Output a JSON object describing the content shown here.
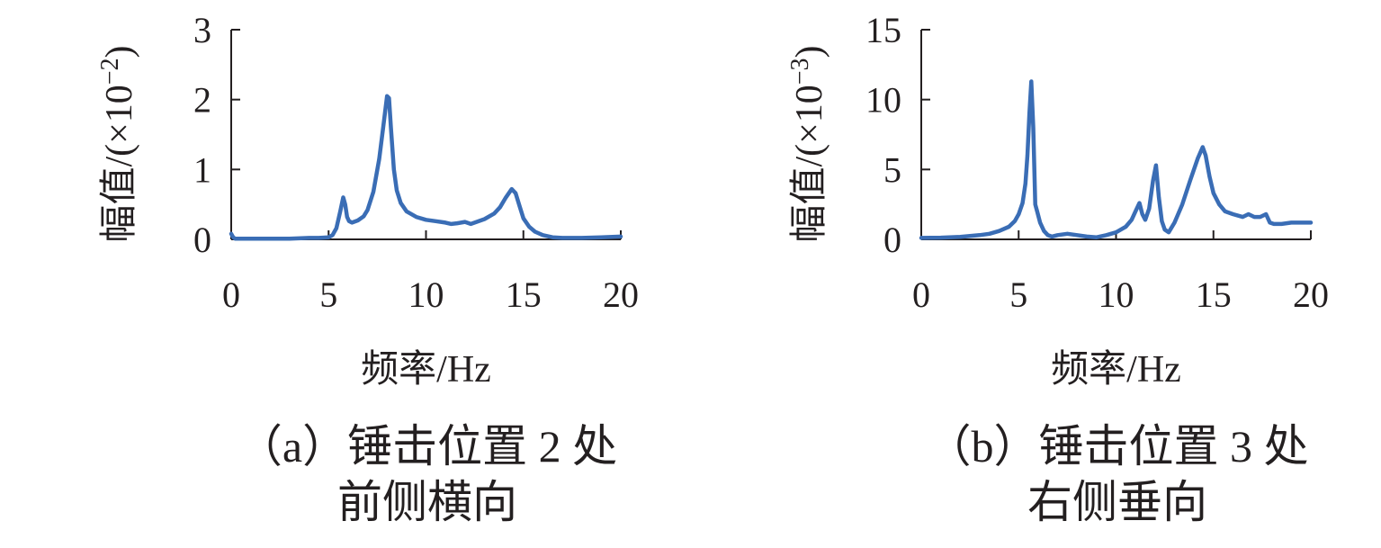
{
  "charts": [
    {
      "id": "a",
      "caption": [
        "（a）锤击位置 2 处",
        "前侧横向"
      ],
      "chart_data": {
        "type": "line",
        "xlabel": "频率/Hz",
        "ylabel": "幅值/(×10",
        "ylabel_exp": "−2",
        "ylabel_close": ")",
        "xlim": [
          0,
          20
        ],
        "ylim": [
          0,
          3
        ],
        "xticks": [
          0,
          5,
          10,
          15,
          20
        ],
        "yticks": [
          0,
          1,
          2,
          3
        ],
        "grid": false,
        "color": "#3a6db5",
        "series": [
          {
            "x": [
              0,
              0.1,
              0.2,
              0.5,
              1,
              2,
              3,
              4,
              4.5,
              5,
              5.2,
              5.4,
              5.6,
              5.75,
              5.85,
              5.95,
              6.05,
              6.2,
              6.5,
              6.8,
              7,
              7.3,
              7.6,
              7.8,
              8.0,
              8.1,
              8.2,
              8.35,
              8.5,
              8.7,
              9,
              9.5,
              10,
              10.5,
              11,
              11.3,
              11.6,
              12,
              12.3,
              12.5,
              13,
              13.5,
              13.8,
              14.1,
              14.4,
              14.6,
              14.8,
              15,
              15.3,
              15.6,
              16,
              16.5,
              17,
              18,
              19,
              20
            ],
            "values": [
              0.08,
              0.03,
              0.01,
              0.01,
              0.01,
              0.01,
              0.01,
              0.02,
              0.02,
              0.03,
              0.06,
              0.16,
              0.4,
              0.6,
              0.5,
              0.32,
              0.26,
              0.24,
              0.27,
              0.33,
              0.42,
              0.68,
              1.15,
              1.6,
              2.05,
              2.02,
              1.6,
              1.0,
              0.7,
              0.52,
              0.4,
              0.32,
              0.28,
              0.26,
              0.24,
              0.22,
              0.23,
              0.25,
              0.22,
              0.24,
              0.29,
              0.37,
              0.46,
              0.6,
              0.72,
              0.66,
              0.48,
              0.3,
              0.18,
              0.11,
              0.06,
              0.03,
              0.02,
              0.02,
              0.03,
              0.04
            ]
          }
        ]
      }
    },
    {
      "id": "b",
      "caption": [
        "（b）锤击位置 3 处",
        "右侧垂向"
      ],
      "chart_data": {
        "type": "line",
        "xlabel": "频率/Hz",
        "ylabel": "幅值/(×10",
        "ylabel_exp": "−3",
        "ylabel_close": ")",
        "xlim": [
          0,
          20
        ],
        "ylim": [
          0,
          15
        ],
        "xticks": [
          0,
          5,
          10,
          15,
          20
        ],
        "yticks": [
          0,
          5,
          10,
          15
        ],
        "grid": false,
        "color": "#3a6db5",
        "series": [
          {
            "x": [
              0,
              1,
              2,
              3,
              3.5,
              4,
              4.5,
              4.8,
              5.0,
              5.2,
              5.35,
              5.45,
              5.55,
              5.65,
              5.75,
              5.85,
              5.95,
              6.1,
              6.3,
              6.5,
              6.7,
              7,
              7.5,
              8,
              8.5,
              9,
              9.5,
              10,
              10.5,
              10.8,
              11,
              11.2,
              11.35,
              11.5,
              11.7,
              11.9,
              12.05,
              12.2,
              12.35,
              12.5,
              12.7,
              13,
              13.4,
              13.8,
              14.2,
              14.45,
              14.6,
              14.8,
              15.0,
              15.3,
              15.6,
              16,
              16.5,
              16.8,
              17.1,
              17.4,
              17.7,
              17.9,
              18.1,
              18.5,
              19,
              20
            ],
            "values": [
              0.1,
              0.12,
              0.18,
              0.3,
              0.4,
              0.6,
              0.9,
              1.3,
              1.8,
              2.6,
              4.0,
              6.0,
              9.0,
              11.3,
              8.0,
              2.5,
              2.0,
              1.2,
              0.6,
              0.3,
              0.2,
              0.3,
              0.4,
              0.3,
              0.2,
              0.15,
              0.3,
              0.5,
              0.9,
              1.4,
              2.0,
              2.6,
              1.8,
              1.4,
              2.2,
              4.2,
              5.3,
              3.0,
              1.3,
              0.7,
              0.5,
              1.2,
              2.5,
              4.2,
              5.8,
              6.6,
              6.0,
              4.5,
              3.3,
              2.5,
              2.0,
              1.8,
              1.6,
              1.8,
              1.6,
              1.6,
              1.8,
              1.2,
              1.1,
              1.1,
              1.2,
              1.2
            ]
          }
        ]
      }
    }
  ]
}
